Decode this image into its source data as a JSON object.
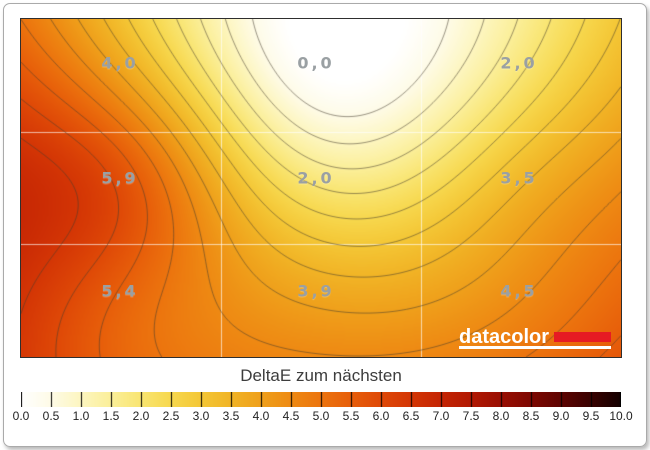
{
  "frame": {
    "background": "#ffffff",
    "border_color": "#aaaaaa"
  },
  "logo": {
    "text": "datacolor",
    "text_color": "#ffffff",
    "bar_color": "#e61b23"
  },
  "chart_data": {
    "type": "heatmap",
    "title": "DeltaE zum nächsten",
    "grid_rows": 3,
    "grid_cols": 3,
    "cell_values": [
      [
        4.0,
        0.0,
        2.0
      ],
      [
        5.9,
        2.0,
        3.5
      ],
      [
        5.4,
        3.9,
        4.5
      ]
    ],
    "cell_labels": [
      "4,0",
      "0,0",
      "2,0",
      "5,9",
      "2,0",
      "3,5",
      "5,4",
      "3,9",
      "4,5"
    ],
    "label_color": "#9aa0a3",
    "contour_interval": 0.5,
    "contour_line_color": "rgba(70,60,45,0.55)",
    "grid_line_color": "rgba(255,255,255,0.65)",
    "colorbar": {
      "min": 0.0,
      "max": 10.0,
      "tick_step": 0.5,
      "tick_labels": [
        "0.0",
        "0.5",
        "1.0",
        "1.5",
        "2.0",
        "2.5",
        "3.0",
        "3.5",
        "4.0",
        "4.5",
        "5.0",
        "5.5",
        "6.0",
        "6.5",
        "7.0",
        "7.5",
        "8.0",
        "8.5",
        "9.0",
        "9.5",
        "10.0"
      ]
    },
    "colormap": [
      {
        "v": 0.0,
        "c": "#ffffff"
      },
      {
        "v": 0.5,
        "c": "#fefbe7"
      },
      {
        "v": 1.0,
        "c": "#fdf6c0"
      },
      {
        "v": 1.5,
        "c": "#fbef99"
      },
      {
        "v": 2.0,
        "c": "#f9e571"
      },
      {
        "v": 2.5,
        "c": "#f7d84e"
      },
      {
        "v": 3.0,
        "c": "#f4c736"
      },
      {
        "v": 3.5,
        "c": "#f1b426"
      },
      {
        "v": 4.0,
        "c": "#efa01b"
      },
      {
        "v": 4.5,
        "c": "#ee8a13"
      },
      {
        "v": 5.0,
        "c": "#ec740e"
      },
      {
        "v": 5.5,
        "c": "#e75e0a"
      },
      {
        "v": 6.0,
        "c": "#df4907"
      },
      {
        "v": 6.5,
        "c": "#d43605"
      },
      {
        "v": 7.0,
        "c": "#c52504"
      },
      {
        "v": 7.5,
        "c": "#b21903"
      },
      {
        "v": 8.0,
        "c": "#9a0f03"
      },
      {
        "v": 8.5,
        "c": "#7e0802"
      },
      {
        "v": 9.0,
        "c": "#5e0401"
      },
      {
        "v": 9.5,
        "c": "#3a0201"
      },
      {
        "v": 10.0,
        "c": "#140000"
      }
    ]
  }
}
